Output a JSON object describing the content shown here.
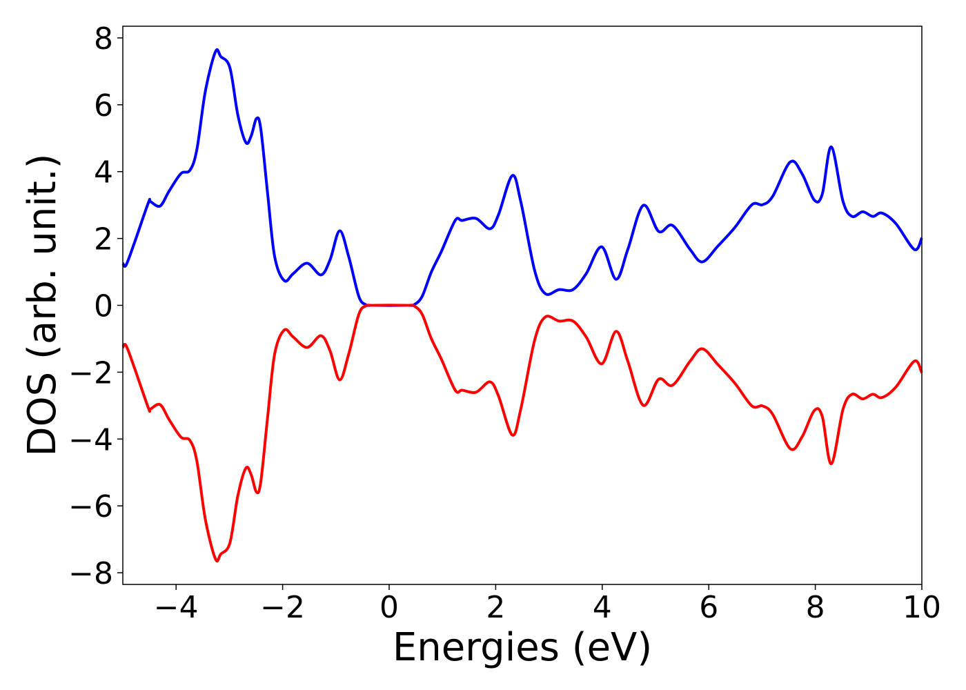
{
  "chart_data": {
    "type": "line",
    "xlabel": "Energies (eV)",
    "ylabel": "DOS (arb. unit.)",
    "xlim": [
      -5,
      10
    ],
    "ylim": [
      -8.35,
      8.35
    ],
    "xticks": [
      {
        "value": -4,
        "label": "−4"
      },
      {
        "value": -2,
        "label": "−2"
      },
      0,
      2,
      4,
      6,
      8,
      10
    ],
    "yticks": [
      {
        "value": -8,
        "label": "−8"
      },
      {
        "value": -6,
        "label": "−6"
      },
      {
        "value": -4,
        "label": "−4"
      },
      {
        "value": -2,
        "label": "−2"
      },
      0,
      2,
      4,
      6,
      8
    ],
    "x": [
      -5,
      -4.94,
      -4.78,
      -4.52,
      -4.48,
      -4.3,
      -4.13,
      -3.91,
      -3.74,
      -3.61,
      -3.45,
      -3.26,
      -3.16,
      -2.99,
      -2.84,
      -2.69,
      -2.59,
      -2.49,
      -2.41,
      -2.28,
      -2.15,
      -1.97,
      -1.8,
      -1.54,
      -1.28,
      -1.11,
      -0.93,
      -0.76,
      -0.57,
      -0.44,
      -0.31,
      0.34,
      0.47,
      0.62,
      0.79,
      0.98,
      1.24,
      1.37,
      1.63,
      1.89,
      2.05,
      2.31,
      2.47,
      2.73,
      2.93,
      3.19,
      3.45,
      3.7,
      3.99,
      4.26,
      4.48,
      4.77,
      5.06,
      5.32,
      5.65,
      5.88,
      6.17,
      6.49,
      6.81,
      7.01,
      7.2,
      7.53,
      7.75,
      7.98,
      8.13,
      8.3,
      8.52,
      8.69,
      8.89,
      9.08,
      9.25,
      9.51,
      9.86,
      10
    ],
    "series": [
      {
        "color": "#0000ff",
        "values": [
          1.26,
          1.2,
          1.88,
          3.07,
          3.1,
          2.97,
          3.42,
          3.94,
          4.04,
          4.66,
          6.41,
          7.59,
          7.44,
          7.11,
          5.69,
          4.87,
          5.07,
          5.59,
          5.28,
          3.32,
          1.46,
          0.74,
          0.95,
          1.26,
          0.91,
          1.36,
          2.23,
          1.46,
          0.27,
          0.02,
          0,
          0,
          0.02,
          0.27,
          0.99,
          1.61,
          2.54,
          2.54,
          2.6,
          2.29,
          2.7,
          3.88,
          3.11,
          1.05,
          0.35,
          0.47,
          0.47,
          0.95,
          1.75,
          0.78,
          1.67,
          2.99,
          2.21,
          2.39,
          1.67,
          1.3,
          1.77,
          2.33,
          3.01,
          3.01,
          3.26,
          4.29,
          3.94,
          3.15,
          3.32,
          4.74,
          3.11,
          2.66,
          2.8,
          2.66,
          2.76,
          2.45,
          1.67,
          2.02
        ]
      },
      {
        "color": "#ff0000",
        "values": [
          -1.26,
          -1.2,
          -1.88,
          -3.07,
          -3.1,
          -2.97,
          -3.42,
          -3.94,
          -4.04,
          -4.66,
          -6.41,
          -7.59,
          -7.44,
          -7.11,
          -5.69,
          -4.87,
          -5.07,
          -5.59,
          -5.28,
          -3.32,
          -1.46,
          -0.74,
          -0.95,
          -1.26,
          -0.91,
          -1.36,
          -2.23,
          -1.46,
          -0.27,
          -0.02,
          0,
          0,
          -0.02,
          -0.27,
          -0.99,
          -1.61,
          -2.54,
          -2.54,
          -2.6,
          -2.29,
          -2.7,
          -3.88,
          -3.11,
          -1.05,
          -0.35,
          -0.47,
          -0.47,
          -0.95,
          -1.75,
          -0.78,
          -1.67,
          -2.99,
          -2.21,
          -2.39,
          -1.67,
          -1.3,
          -1.77,
          -2.33,
          -3.01,
          -3.01,
          -3.26,
          -4.29,
          -3.94,
          -3.15,
          -3.32,
          -4.74,
          -3.11,
          -2.66,
          -2.8,
          -2.66,
          -2.76,
          -2.45,
          -1.67,
          -2.02
        ]
      }
    ]
  }
}
